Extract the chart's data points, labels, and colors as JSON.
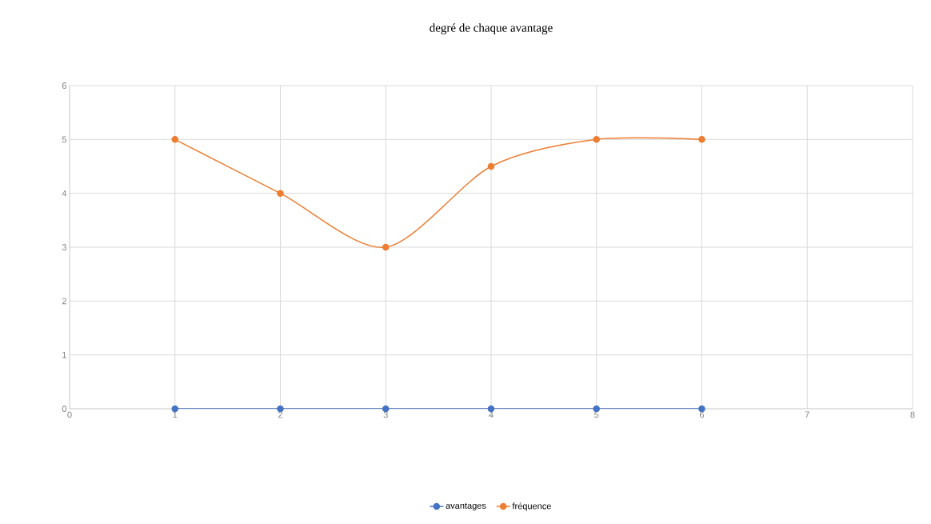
{
  "chart_data": {
    "type": "line",
    "title": "degré de chaque avantage",
    "x": [
      1,
      2,
      3,
      4,
      5,
      6
    ],
    "series": [
      {
        "name": "avantages",
        "color": "#4472c4",
        "values": [
          0,
          0,
          0,
          0,
          0,
          0
        ]
      },
      {
        "name": "fréquence",
        "color": "#ed7d31",
        "values": [
          5,
          4,
          3,
          4.5,
          5,
          5
        ]
      }
    ],
    "xlim": [
      0,
      8
    ],
    "xticks": [
      0,
      1,
      2,
      3,
      4,
      5,
      6,
      7,
      8
    ],
    "ylim": [
      0,
      6
    ],
    "yticks": [
      0,
      1,
      2,
      3,
      4,
      5,
      6
    ],
    "grid": true,
    "legend": "bottom",
    "marker": "circle",
    "line_style": "solid"
  }
}
